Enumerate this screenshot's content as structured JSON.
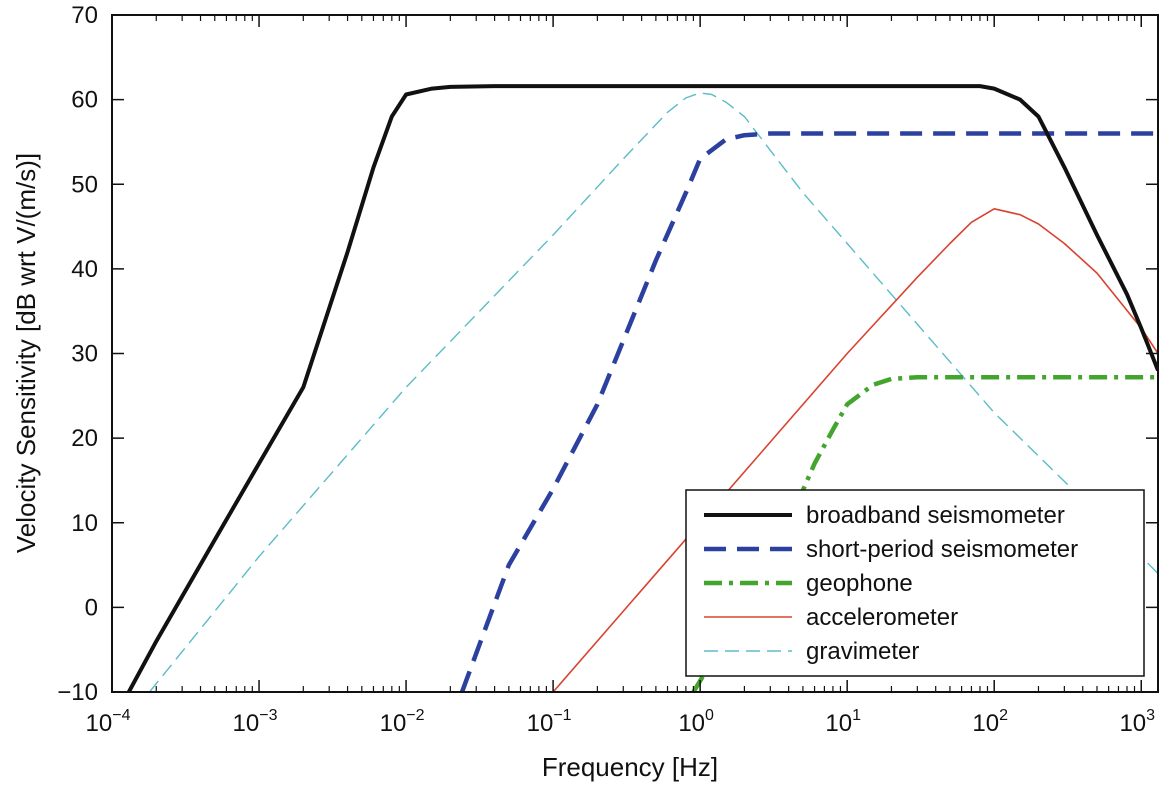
{
  "chart_data": {
    "type": "line",
    "title": "",
    "xlabel": "Frequency [Hz]",
    "ylabel": "Velocity Sensitivity [dB wrt V/(m/s)]",
    "xscale": "log",
    "xlim": [
      0.0001,
      1300
    ],
    "ylim": [
      -10,
      70
    ],
    "xticks": [
      {
        "base": "10",
        "exp": "−4",
        "value": 0.0001
      },
      {
        "base": "10",
        "exp": "−3",
        "value": 0.001
      },
      {
        "base": "10",
        "exp": "−2",
        "value": 0.01
      },
      {
        "base": "10",
        "exp": "−1",
        "value": 0.1
      },
      {
        "base": "10",
        "exp": "0",
        "value": 1
      },
      {
        "base": "10",
        "exp": "1",
        "value": 10
      },
      {
        "base": "10",
        "exp": "2",
        "value": 100
      },
      {
        "base": "10",
        "exp": "3",
        "value": 1000
      }
    ],
    "yticks": [
      "−10",
      "0",
      "10",
      "20",
      "30",
      "40",
      "50",
      "60",
      "70"
    ],
    "ytick_values": [
      -10,
      0,
      10,
      20,
      30,
      40,
      50,
      60,
      70
    ],
    "grid": false,
    "legend_position": "bottom-right",
    "series": [
      {
        "name": "broadband seismometer",
        "color": "#111111",
        "style": "solid",
        "x": [
          0.00013,
          0.0002,
          0.0005,
          0.001,
          0.002,
          0.004,
          0.006,
          0.008,
          0.01,
          0.015,
          0.02,
          0.04,
          0.1,
          1,
          10,
          50,
          80,
          100,
          150,
          200,
          300,
          500,
          800,
          1000,
          1300
        ],
        "y": [
          -10,
          -4,
          8,
          17,
          26,
          42,
          52,
          58,
          60.6,
          61.3,
          61.5,
          61.6,
          61.6,
          61.6,
          61.6,
          61.6,
          61.6,
          61.3,
          60,
          58,
          52,
          44,
          37,
          33,
          28
        ]
      },
      {
        "name": "short-period seismometer",
        "color": "#2c40a0",
        "style": "dashed",
        "x": [
          0.024,
          0.05,
          0.1,
          0.2,
          0.5,
          0.8,
          1,
          1.5,
          2,
          3,
          10,
          100,
          1300
        ],
        "y": [
          -10,
          5,
          14,
          24,
          41,
          49,
          53,
          55.3,
          55.8,
          56,
          56,
          56,
          56
        ]
      },
      {
        "name": "geophone",
        "color": "#44a52e",
        "style": "dashdot",
        "x": [
          0.9,
          2,
          4,
          6,
          8,
          10,
          15,
          20,
          30,
          100,
          1300
        ],
        "y": [
          -10,
          0,
          10,
          17,
          21,
          24,
          26.3,
          27,
          27.2,
          27.2,
          27.2
        ]
      },
      {
        "name": "accelerometer",
        "color": "#d8432f",
        "style": "solid",
        "x": [
          0.1,
          1,
          10,
          30,
          50,
          70,
          100,
          150,
          200,
          300,
          500,
          1000,
          1300
        ],
        "y": [
          -10,
          10,
          30,
          39,
          43,
          45.5,
          47.1,
          46.4,
          45.3,
          43,
          39.5,
          33,
          30
        ]
      },
      {
        "name": "gravimeter",
        "color": "#5bbcc8",
        "style": "dashed-thin",
        "x": [
          0.00018,
          0.001,
          0.01,
          0.1,
          0.3,
          0.6,
          0.8,
          1,
          1.2,
          1.5,
          2,
          5,
          10,
          100,
          1000,
          1300
        ],
        "y": [
          -10,
          6,
          26,
          44,
          53,
          58.5,
          60.2,
          60.8,
          60.6,
          59.7,
          58,
          49,
          43,
          23,
          6,
          4
        ]
      }
    ]
  }
}
